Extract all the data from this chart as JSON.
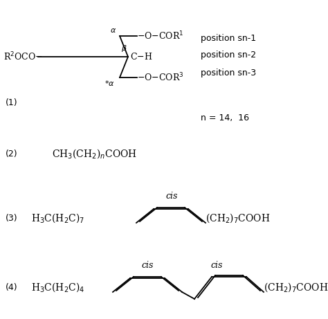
{
  "bg_color": "#ffffff",
  "fig_width": 4.74,
  "fig_height": 4.61,
  "dpi": 100,
  "text_color": "#000000",
  "label_1": "(1)",
  "label_2": "(2)",
  "label_3": "(3)",
  "label_4": "(4)",
  "n_label": "n = 14,  16",
  "pos_sn1": "position sn-1",
  "pos_sn2": "position sn-2",
  "pos_sn3": "position sn-3",
  "cis_label": "cis"
}
